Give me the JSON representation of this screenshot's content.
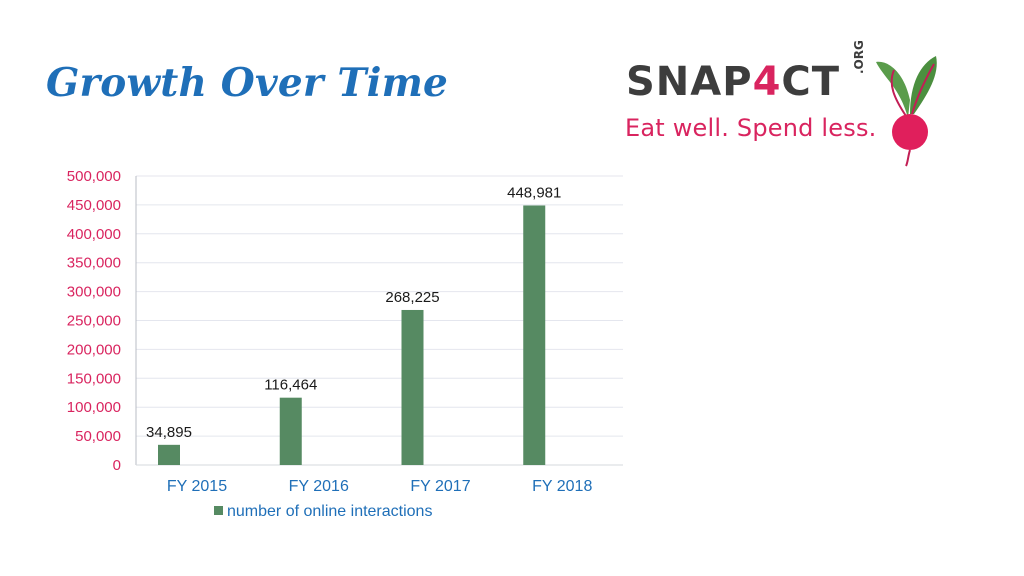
{
  "slide": {
    "title": "Growth Over Time"
  },
  "logo": {
    "brand_prefix": "SNAP",
    "brand_digit": "4",
    "brand_suffix": "CT",
    "domain_suffix": ".ORG",
    "tagline": "Eat well. Spend less.",
    "icon": "beet-icon"
  },
  "colors": {
    "title": "#1f6fb8",
    "bar": "#568a62",
    "y_ticks": "#d9245f",
    "x_ticks": "#1f6fb8",
    "brand_accent": "#d9245f"
  },
  "chart_data": {
    "type": "bar",
    "categories": [
      "FY 2015",
      "FY 2016",
      "FY 2017",
      "FY 2018"
    ],
    "series": [
      {
        "name": "number of online interactions",
        "values": [
          34895,
          116464,
          268225,
          448981
        ]
      }
    ],
    "data_labels": [
      "34,895",
      "116,464",
      "268,225",
      "448,981"
    ],
    "y_ticks": [
      "0",
      "50,000",
      "100,000",
      "150,000",
      "200,000",
      "250,000",
      "300,000",
      "350,000",
      "400,000",
      "450,000",
      "500,000"
    ],
    "ylim": [
      0,
      500000
    ],
    "grid": true,
    "legend_position": "bottom"
  }
}
